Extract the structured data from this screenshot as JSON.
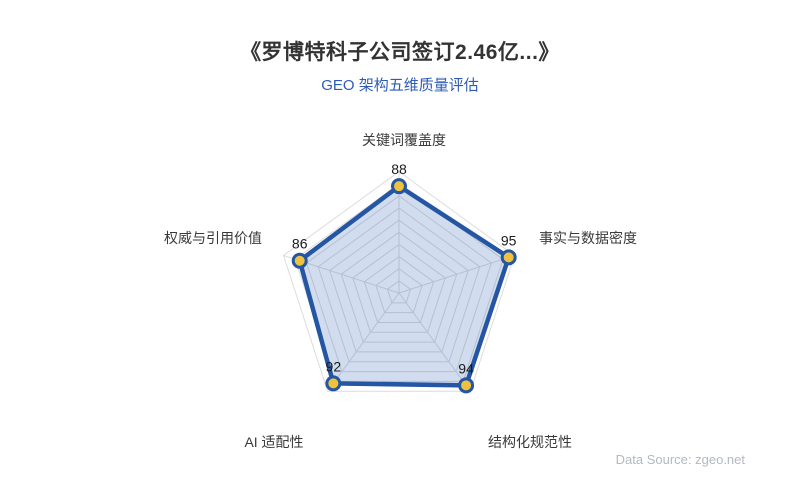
{
  "title": "《罗博特科子公司签订2.46亿...》",
  "subtitle": "GEO 架构五维质量评估",
  "footer": {
    "data_source": "Data Source: zgeo.net"
  },
  "chart_data": {
    "type": "radar",
    "title": "GEO 架构五维质量评估",
    "axes": [
      "关键词覆盖度",
      "事实与数据密度",
      "结构化规范性",
      "AI 适配性",
      "权威与引用价值"
    ],
    "values": [
      88,
      95,
      94,
      92,
      86
    ],
    "max": 100,
    "grid_rings": 10,
    "legend": "none",
    "colors": {
      "polygon_line": "#2456a4",
      "polygon_fill": "rgba(47, 94, 176, 0.22)",
      "point_fill": "#efc23e",
      "point_stroke": "#2456a4",
      "grid_line": "#dcdcdc",
      "value_label": "#1a1a1a",
      "axis_label": "#3a3a3a",
      "title_color": "#333333",
      "subtitle_color": "#2d5cb5",
      "source_color": "#b3b9c2"
    }
  }
}
